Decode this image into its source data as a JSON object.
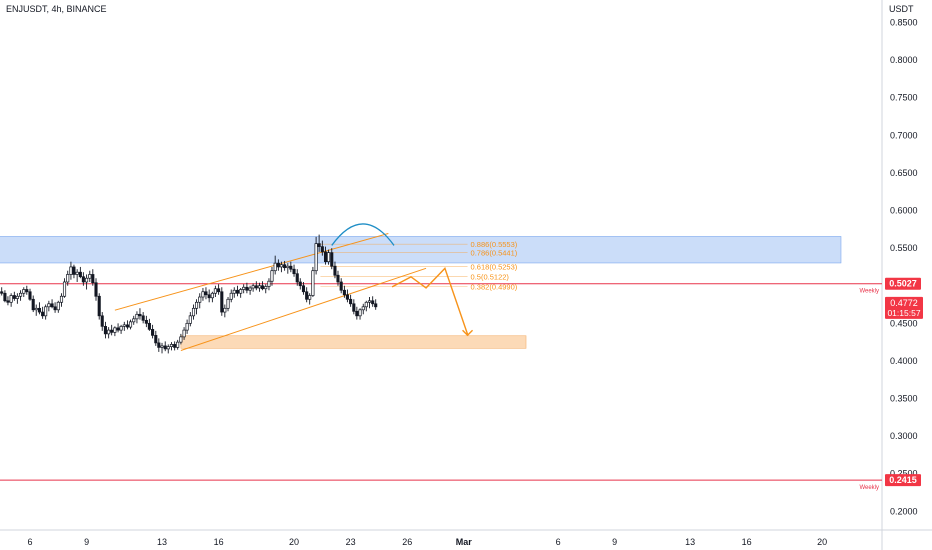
{
  "header": {
    "title": "ENJUSDT, 4h, BINANCE"
  },
  "price_axis": {
    "currency": "USDT",
    "ticks": [
      "0.8500",
      "0.8000",
      "0.7500",
      "0.7000",
      "0.6500",
      "0.6000",
      "0.5500",
      "0.4500",
      "0.4000",
      "0.3500",
      "0.3000",
      "0.2500",
      "0.2000"
    ]
  },
  "time_axis": {
    "ticks": [
      {
        "label": "6",
        "day": 6
      },
      {
        "label": "9",
        "day": 9
      },
      {
        "label": "13",
        "day": 13
      },
      {
        "label": "16",
        "day": 16
      },
      {
        "label": "20",
        "day": 20
      },
      {
        "label": "23",
        "day": 23
      },
      {
        "label": "26",
        "day": 26
      },
      {
        "label": "Mar",
        "day": 29
      },
      {
        "label": "6",
        "day": 34
      },
      {
        "label": "9",
        "day": 37
      },
      {
        "label": "13",
        "day": 41
      },
      {
        "label": "16",
        "day": 44
      },
      {
        "label": "20",
        "day": 48
      }
    ]
  },
  "price_badges": [
    {
      "id": "weekly-top",
      "value": "0.5027",
      "note": "Weekly",
      "price": 0.5027,
      "color": "#f23645"
    },
    {
      "id": "weekly-bottom",
      "value": "0.2415",
      "note": "Weekly",
      "price": 0.2415,
      "color": "#f23645"
    }
  ],
  "current_price": {
    "value": "0.4772",
    "countdown": "01:15:57",
    "price": 0.4772,
    "color": "#f23645"
  },
  "fib_levels": [
    {
      "label": "0.886(0.5553)",
      "price": 0.5553
    },
    {
      "label": "0.786(0.5441)",
      "price": 0.5441
    },
    {
      "label": "0.618(0.5253)",
      "price": 0.5253
    },
    {
      "label": "0.5(0.5122)",
      "price": 0.5122
    },
    {
      "label": "0.382(0.4990)",
      "price": 0.499
    }
  ],
  "colors": {
    "up": "#131722",
    "down": "#131722",
    "channel": "#f7931a",
    "resistance_zone": "#a9c7f5",
    "target_zone": "#fbd3aa",
    "weekly_line": "#e8334a",
    "arc": "#1f8ec6"
  },
  "chart_data": {
    "type": "candlestick",
    "symbol": "ENJUSDT",
    "interval": "4h",
    "exchange": "BINANCE",
    "x_unit": "day (Feb 1 = 1)",
    "ylim": [
      0.18,
      0.87
    ],
    "xlim": [
      4.0,
      51.5
    ],
    "candles": [
      [
        4.0,
        0.495,
        0.5,
        0.485,
        0.49
      ],
      [
        4.17,
        0.49,
        0.496,
        0.48,
        0.485
      ],
      [
        4.33,
        0.485,
        0.495,
        0.48,
        0.492
      ],
      [
        4.5,
        0.492,
        0.498,
        0.487,
        0.49
      ],
      [
        4.67,
        0.49,
        0.494,
        0.478,
        0.48
      ],
      [
        4.83,
        0.48,
        0.486,
        0.474,
        0.478
      ],
      [
        5.0,
        0.478,
        0.49,
        0.472,
        0.487
      ],
      [
        5.17,
        0.487,
        0.492,
        0.48,
        0.483
      ],
      [
        5.33,
        0.483,
        0.49,
        0.476,
        0.486
      ],
      [
        5.5,
        0.486,
        0.494,
        0.48,
        0.49
      ],
      [
        5.67,
        0.49,
        0.498,
        0.485,
        0.495
      ],
      [
        5.83,
        0.495,
        0.5,
        0.488,
        0.492
      ],
      [
        6.0,
        0.492,
        0.496,
        0.48,
        0.482
      ],
      [
        6.17,
        0.482,
        0.487,
        0.465,
        0.468
      ],
      [
        6.33,
        0.468,
        0.475,
        0.46,
        0.47
      ],
      [
        6.5,
        0.47,
        0.478,
        0.462,
        0.465
      ],
      [
        6.67,
        0.465,
        0.472,
        0.456,
        0.46
      ],
      [
        6.83,
        0.46,
        0.475,
        0.455,
        0.472
      ],
      [
        7.0,
        0.472,
        0.48,
        0.466,
        0.476
      ],
      [
        7.17,
        0.476,
        0.482,
        0.47,
        0.472
      ],
      [
        7.33,
        0.472,
        0.478,
        0.464,
        0.468
      ],
      [
        7.5,
        0.468,
        0.48,
        0.464,
        0.478
      ],
      [
        7.67,
        0.478,
        0.49,
        0.472,
        0.486
      ],
      [
        7.83,
        0.486,
        0.51,
        0.484,
        0.505
      ],
      [
        8.0,
        0.505,
        0.52,
        0.5,
        0.515
      ],
      [
        8.17,
        0.515,
        0.532,
        0.508,
        0.525
      ],
      [
        8.33,
        0.525,
        0.528,
        0.51,
        0.515
      ],
      [
        8.5,
        0.515,
        0.522,
        0.505,
        0.518
      ],
      [
        8.67,
        0.518,
        0.525,
        0.51,
        0.512
      ],
      [
        8.83,
        0.512,
        0.518,
        0.5,
        0.505
      ],
      [
        9.0,
        0.505,
        0.515,
        0.495,
        0.51
      ],
      [
        9.17,
        0.51,
        0.52,
        0.505,
        0.515
      ],
      [
        9.33,
        0.515,
        0.522,
        0.5,
        0.504
      ],
      [
        9.5,
        0.504,
        0.51,
        0.48,
        0.486
      ],
      [
        9.67,
        0.486,
        0.49,
        0.455,
        0.46
      ],
      [
        9.83,
        0.46,
        0.465,
        0.44,
        0.446
      ],
      [
        10.0,
        0.446,
        0.452,
        0.43,
        0.436
      ],
      [
        10.17,
        0.436,
        0.445,
        0.43,
        0.441
      ],
      [
        10.33,
        0.441,
        0.448,
        0.434,
        0.438
      ],
      [
        10.5,
        0.438,
        0.446,
        0.433,
        0.444
      ],
      [
        10.67,
        0.444,
        0.45,
        0.438,
        0.441
      ],
      [
        10.83,
        0.441,
        0.448,
        0.436,
        0.446
      ],
      [
        11.0,
        0.446,
        0.452,
        0.44,
        0.448
      ],
      [
        11.17,
        0.448,
        0.454,
        0.442,
        0.445
      ],
      [
        11.33,
        0.445,
        0.455,
        0.442,
        0.452
      ],
      [
        11.5,
        0.452,
        0.46,
        0.448,
        0.456
      ],
      [
        11.67,
        0.456,
        0.466,
        0.45,
        0.462
      ],
      [
        11.83,
        0.462,
        0.47,
        0.455,
        0.46
      ],
      [
        12.0,
        0.46,
        0.465,
        0.45,
        0.454
      ],
      [
        12.17,
        0.454,
        0.46,
        0.445,
        0.45
      ],
      [
        12.33,
        0.45,
        0.456,
        0.44,
        0.442
      ],
      [
        12.5,
        0.442,
        0.448,
        0.43,
        0.434
      ],
      [
        12.67,
        0.434,
        0.44,
        0.42,
        0.424
      ],
      [
        12.83,
        0.424,
        0.43,
        0.412,
        0.418
      ],
      [
        13.0,
        0.418,
        0.424,
        0.41,
        0.42
      ],
      [
        13.17,
        0.42,
        0.426,
        0.413,
        0.416
      ],
      [
        13.33,
        0.416,
        0.422,
        0.41,
        0.419
      ],
      [
        13.5,
        0.419,
        0.425,
        0.414,
        0.422
      ],
      [
        13.67,
        0.422,
        0.426,
        0.414,
        0.418
      ],
      [
        13.83,
        0.418,
        0.428,
        0.415,
        0.425
      ],
      [
        14.0,
        0.425,
        0.436,
        0.422,
        0.432
      ],
      [
        14.17,
        0.432,
        0.445,
        0.428,
        0.441
      ],
      [
        14.33,
        0.441,
        0.455,
        0.436,
        0.45
      ],
      [
        14.5,
        0.45,
        0.465,
        0.446,
        0.46
      ],
      [
        14.67,
        0.46,
        0.475,
        0.455,
        0.47
      ],
      [
        14.83,
        0.47,
        0.482,
        0.462,
        0.478
      ],
      [
        15.0,
        0.478,
        0.49,
        0.47,
        0.485
      ],
      [
        15.17,
        0.485,
        0.497,
        0.48,
        0.492
      ],
      [
        15.33,
        0.492,
        0.498,
        0.482,
        0.488
      ],
      [
        15.5,
        0.488,
        0.495,
        0.478,
        0.484
      ],
      [
        15.67,
        0.484,
        0.492,
        0.478,
        0.49
      ],
      [
        15.83,
        0.49,
        0.5,
        0.485,
        0.496
      ],
      [
        16.0,
        0.496,
        0.502,
        0.488,
        0.492
      ],
      [
        16.17,
        0.492,
        0.498,
        0.46,
        0.465
      ],
      [
        16.33,
        0.465,
        0.475,
        0.458,
        0.47
      ],
      [
        16.5,
        0.47,
        0.485,
        0.466,
        0.482
      ],
      [
        16.67,
        0.482,
        0.495,
        0.478,
        0.49
      ],
      [
        16.83,
        0.49,
        0.498,
        0.484,
        0.494
      ],
      [
        17.0,
        0.494,
        0.5,
        0.486,
        0.49
      ],
      [
        17.17,
        0.49,
        0.497,
        0.484,
        0.495
      ],
      [
        17.33,
        0.495,
        0.502,
        0.49,
        0.498
      ],
      [
        17.5,
        0.498,
        0.504,
        0.49,
        0.494
      ],
      [
        17.67,
        0.494,
        0.5,
        0.488,
        0.497
      ],
      [
        17.83,
        0.497,
        0.503,
        0.492,
        0.5
      ],
      [
        18.0,
        0.5,
        0.506,
        0.494,
        0.497
      ],
      [
        18.17,
        0.497,
        0.504,
        0.492,
        0.5
      ],
      [
        18.33,
        0.5,
        0.506,
        0.494,
        0.496
      ],
      [
        18.5,
        0.496,
        0.502,
        0.49,
        0.499
      ],
      [
        18.67,
        0.499,
        0.51,
        0.494,
        0.506
      ],
      [
        18.83,
        0.506,
        0.525,
        0.5,
        0.52
      ],
      [
        19.0,
        0.52,
        0.54,
        0.515,
        0.53
      ],
      [
        19.17,
        0.53,
        0.535,
        0.52,
        0.525
      ],
      [
        19.33,
        0.525,
        0.532,
        0.518,
        0.528
      ],
      [
        19.5,
        0.528,
        0.533,
        0.52,
        0.524
      ],
      [
        19.67,
        0.524,
        0.53,
        0.516,
        0.526
      ],
      [
        19.83,
        0.526,
        0.532,
        0.518,
        0.522
      ],
      [
        20.0,
        0.522,
        0.528,
        0.512,
        0.516
      ],
      [
        20.17,
        0.516,
        0.522,
        0.5,
        0.505
      ],
      [
        20.33,
        0.505,
        0.51,
        0.495,
        0.5
      ],
      [
        20.5,
        0.5,
        0.505,
        0.488,
        0.492
      ],
      [
        20.67,
        0.492,
        0.498,
        0.478,
        0.482
      ],
      [
        20.83,
        0.482,
        0.49,
        0.475,
        0.487
      ],
      [
        21.0,
        0.487,
        0.525,
        0.485,
        0.52
      ],
      [
        21.17,
        0.52,
        0.565,
        0.515,
        0.556
      ],
      [
        21.33,
        0.556,
        0.568,
        0.545,
        0.552
      ],
      [
        21.5,
        0.552,
        0.56,
        0.54,
        0.545
      ],
      [
        21.67,
        0.545,
        0.552,
        0.528,
        0.532
      ],
      [
        21.83,
        0.532,
        0.548,
        0.528,
        0.544
      ],
      [
        22.0,
        0.544,
        0.55,
        0.522,
        0.526
      ],
      [
        22.17,
        0.526,
        0.532,
        0.51,
        0.514
      ],
      [
        22.33,
        0.514,
        0.52,
        0.5,
        0.505
      ],
      [
        22.5,
        0.505,
        0.51,
        0.49,
        0.494
      ],
      [
        22.67,
        0.494,
        0.5,
        0.484,
        0.488
      ],
      [
        22.83,
        0.488,
        0.495,
        0.478,
        0.482
      ],
      [
        23.0,
        0.482,
        0.488,
        0.472,
        0.476
      ],
      [
        23.17,
        0.476,
        0.482,
        0.462,
        0.466
      ],
      [
        23.33,
        0.466,
        0.472,
        0.455,
        0.46
      ],
      [
        23.5,
        0.46,
        0.47,
        0.455,
        0.468
      ],
      [
        23.67,
        0.468,
        0.476,
        0.462,
        0.472
      ],
      [
        23.83,
        0.472,
        0.48,
        0.466,
        0.478
      ],
      [
        24.0,
        0.478,
        0.485,
        0.47,
        0.48
      ],
      [
        24.17,
        0.48,
        0.486,
        0.472,
        0.476
      ],
      [
        24.33,
        0.476,
        0.482,
        0.468,
        0.472
      ]
    ],
    "annotations": {
      "resistance_zone": {
        "from_day": 4.0,
        "to_day": 49.0,
        "y_top": 0.5655,
        "y_bottom": 0.5303
      },
      "target_zone": {
        "from_day": 14.0,
        "to_day": 32.3,
        "y_top": 0.4335,
        "y_bottom": 0.4168
      },
      "channel_upper": [
        [
          10.5,
          0.4675
        ],
        [
          25.0,
          0.5695
        ]
      ],
      "channel_lower": [
        [
          14.0,
          0.4139
        ],
        [
          27.0,
          0.5232
        ]
      ],
      "fib_anchor_x": [
        21.4,
        29.2
      ],
      "projected_path": [
        [
          25.2,
          0.4985
        ],
        [
          26.2,
          0.5118
        ],
        [
          27.0,
          0.4971
        ],
        [
          28.0,
          0.5231
        ],
        [
          29.2,
          0.4355
        ]
      ],
      "top_arc": {
        "from_day": 22.0,
        "to_day": 25.3,
        "y_base": 0.5536,
        "y_peak": 0.5822
      }
    }
  }
}
